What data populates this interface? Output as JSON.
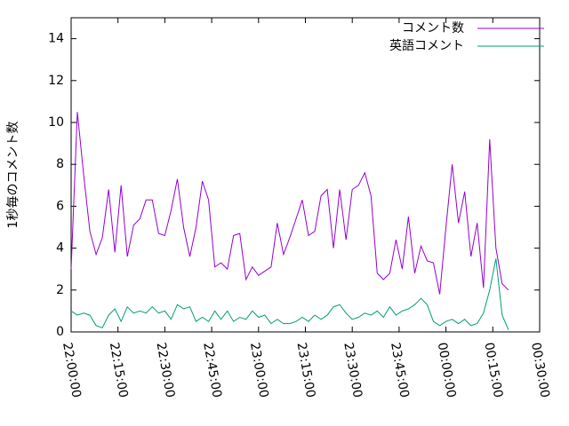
{
  "chart_data": {
    "type": "line",
    "y_label": "1秒毎のコメント数",
    "x": [
      "22:00:00",
      "22:02:00",
      "22:04:00",
      "22:06:00",
      "22:08:00",
      "22:10:00",
      "22:12:00",
      "22:14:00",
      "22:16:00",
      "22:18:00",
      "22:20:00",
      "22:22:00",
      "22:24:00",
      "22:26:00",
      "22:28:00",
      "22:30:00",
      "22:32:00",
      "22:34:00",
      "22:36:00",
      "22:38:00",
      "22:40:00",
      "22:42:00",
      "22:44:00",
      "22:46:00",
      "22:48:00",
      "22:50:00",
      "22:52:00",
      "22:54:00",
      "22:56:00",
      "22:58:00",
      "23:00:00",
      "23:02:00",
      "23:04:00",
      "23:06:00",
      "23:08:00",
      "23:10:00",
      "23:12:00",
      "23:14:00",
      "23:16:00",
      "23:18:00",
      "23:20:00",
      "23:22:00",
      "23:24:00",
      "23:26:00",
      "23:28:00",
      "23:30:00",
      "23:32:00",
      "23:34:00",
      "23:36:00",
      "23:38:00",
      "23:40:00",
      "23:42:00",
      "23:44:00",
      "23:46:00",
      "23:48:00",
      "23:50:00",
      "23:52:00",
      "23:54:00",
      "23:56:00",
      "23:58:00",
      "00:00:00",
      "00:02:00",
      "00:04:00",
      "00:06:00",
      "00:08:00",
      "00:10:00",
      "00:12:00",
      "00:14:00",
      "00:16:00",
      "00:18:00",
      "00:20:00"
    ],
    "series": [
      {
        "name": "コメント数",
        "color": "#9400d3",
        "values": [
          3.0,
          10.5,
          7.5,
          4.8,
          3.7,
          4.5,
          6.8,
          3.8,
          7.0,
          3.6,
          5.1,
          5.4,
          6.3,
          6.3,
          4.7,
          4.6,
          5.8,
          7.3,
          5.0,
          3.6,
          5.0,
          7.2,
          6.3,
          3.1,
          3.3,
          3.0,
          4.6,
          4.7,
          2.5,
          3.1,
          2.7,
          2.9,
          3.1,
          5.2,
          3.7,
          4.5,
          5.4,
          6.3,
          4.6,
          4.8,
          6.5,
          6.8,
          4.0,
          6.8,
          4.4,
          6.8,
          7.0,
          7.6,
          6.5,
          2.8,
          2.5,
          2.8,
          4.4,
          3.0,
          5.5,
          2.8,
          4.1,
          3.4,
          3.3,
          1.8,
          5.0,
          8.0,
          5.2,
          6.7,
          3.6,
          5.2,
          2.1,
          9.2,
          4.0,
          2.3,
          2.0
        ]
      },
      {
        "name": "英語コメント",
        "color": "#009e73",
        "values": [
          1.0,
          0.8,
          0.9,
          0.8,
          0.3,
          0.2,
          0.8,
          1.1,
          0.5,
          1.2,
          0.9,
          1.0,
          0.9,
          1.2,
          0.9,
          1.0,
          0.6,
          1.3,
          1.1,
          1.2,
          0.5,
          0.7,
          0.5,
          1.0,
          0.6,
          1.0,
          0.5,
          0.7,
          0.6,
          1.0,
          0.7,
          0.8,
          0.4,
          0.6,
          0.4,
          0.4,
          0.5,
          0.7,
          0.5,
          0.8,
          0.6,
          0.8,
          1.2,
          1.3,
          0.9,
          0.6,
          0.7,
          0.9,
          0.8,
          1.0,
          0.7,
          1.2,
          0.8,
          1.0,
          1.1,
          1.3,
          1.6,
          1.3,
          0.5,
          0.3,
          0.5,
          0.6,
          0.4,
          0.6,
          0.3,
          0.4,
          0.9,
          2.0,
          3.5,
          0.8,
          0.1
        ]
      }
    ],
    "xlim": [
      "22:00:00",
      "00:30:00"
    ],
    "xticks": [
      "22:00:00",
      "22:15:00",
      "22:30:00",
      "22:45:00",
      "23:00:00",
      "23:15:00",
      "23:30:00",
      "23:45:00",
      "00:00:00",
      "00:15:00",
      "00:30:00"
    ],
    "ylim": [
      0,
      15
    ],
    "yticks": [
      0,
      2,
      4,
      6,
      8,
      10,
      12,
      14
    ],
    "legend": "top-right"
  }
}
